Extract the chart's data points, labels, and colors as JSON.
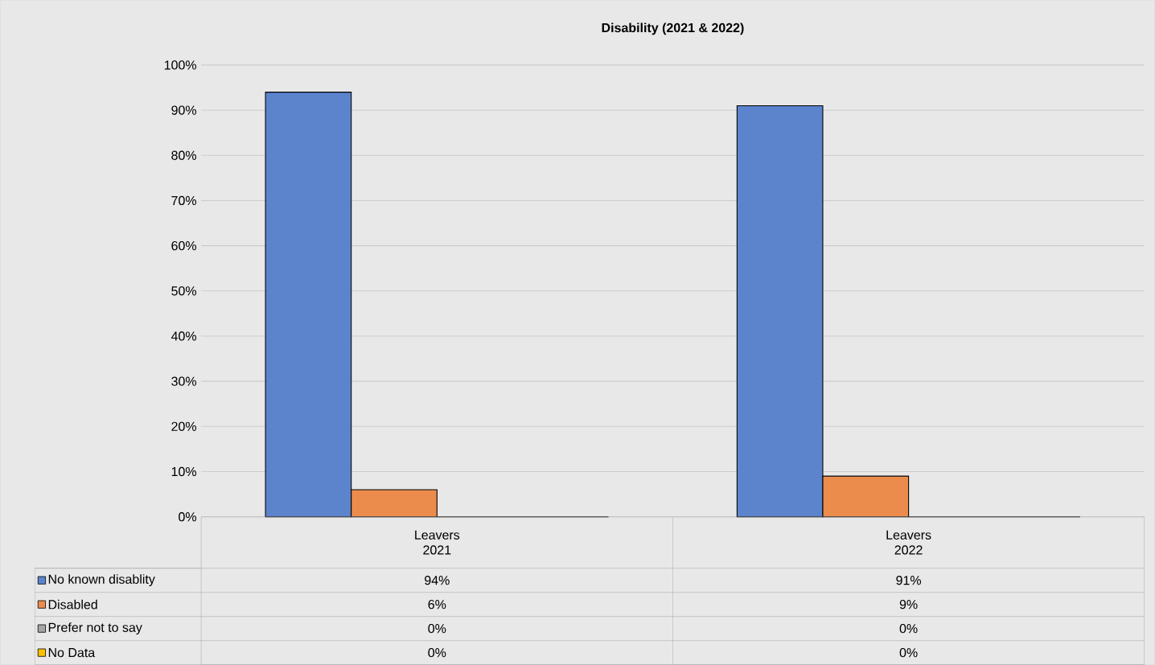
{
  "chart_data": {
    "type": "bar",
    "title": "Disability (2021 & 2022)",
    "categories": [
      "Leavers 2021",
      "Leavers 2022"
    ],
    "series": [
      {
        "name": "No known disablity",
        "color": "#5b84cc",
        "values": [
          94,
          91
        ],
        "value_labels": [
          "94%",
          "91%"
        ]
      },
      {
        "name": "Disabled",
        "color": "#eb8c4d",
        "values": [
          6,
          9
        ],
        "value_labels": [
          "6%",
          "9%"
        ]
      },
      {
        "name": "Prefer not to say",
        "color": "#a5a5a5",
        "values": [
          0,
          0
        ],
        "value_labels": [
          "0%",
          "0%"
        ]
      },
      {
        "name": "No Data",
        "color": "#ffc000",
        "values": [
          0,
          0
        ],
        "value_labels": [
          "0%",
          "0%"
        ]
      }
    ],
    "ylim": [
      0,
      100
    ],
    "yticks": [
      {
        "value": 0,
        "label": "0%"
      },
      {
        "value": 10,
        "label": "10%"
      },
      {
        "value": 20,
        "label": "20%"
      },
      {
        "value": 30,
        "label": "30%"
      },
      {
        "value": 40,
        "label": "40%"
      },
      {
        "value": 50,
        "label": "50%"
      },
      {
        "value": 60,
        "label": "60%"
      },
      {
        "value": 70,
        "label": "70%"
      },
      {
        "value": 80,
        "label": "80%"
      },
      {
        "value": 90,
        "label": "90%"
      },
      {
        "value": 100,
        "label": "100%"
      }
    ],
    "grid": "y",
    "legend": "bottom"
  }
}
